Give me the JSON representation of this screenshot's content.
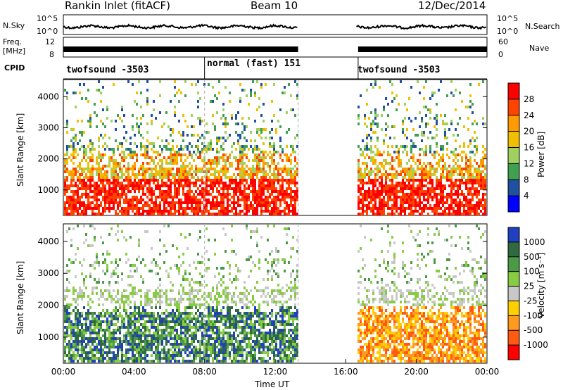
{
  "header": {
    "station": "Rankin Inlet (fitACF)",
    "beam": "Beam 10",
    "date": "12/Dec/2014"
  },
  "labels": {
    "nsky": "N.Sky",
    "freq_line1": "Freq.",
    "freq_line2": "[MHz]",
    "cpid": "CPID",
    "nsearch": "N.Search",
    "nave": "Nave",
    "nsky_ticks": [
      "10^5",
      "10^0"
    ],
    "freq_ticks": [
      "12",
      "8"
    ],
    "nave_ticks": [
      "60",
      "0"
    ],
    "nsearch_ticks": [
      "10^5",
      "10^0"
    ]
  },
  "cpid_segments": [
    {
      "name": "twofsound -3503",
      "start_h": 0.0
    },
    {
      "name": "normal (fast) 151",
      "start_h": 8.0
    },
    {
      "name": "twofsound -3503",
      "start_h": 16.7
    }
  ],
  "chart_data": [
    {
      "type": "heatmap",
      "title": "",
      "xlabel": "Time UT",
      "ylabel": "Slant Range [km]",
      "x_ticks": [
        "00:00",
        "04:00",
        "08:00",
        "12:00",
        "16:00",
        "20:00",
        "00:00"
      ],
      "xlim_hours": [
        0,
        24
      ],
      "y_ticks": [
        1000,
        2000,
        3000,
        4000
      ],
      "ylim": [
        180,
        4550
      ],
      "colorbar_label": "Power [dB]",
      "colorbar_ticks": [
        28,
        24,
        20,
        16,
        12,
        8,
        4
      ],
      "colors": [
        "#ff0000",
        "#ff4400",
        "#ff9a00",
        "#f0c000",
        "#a0d060",
        "#40a050",
        "#2050a0",
        "#0000ff"
      ],
      "data_gaps_hours": [
        [
          13.3,
          16.6
        ]
      ]
    },
    {
      "type": "heatmap",
      "title": "",
      "xlabel": "Time UT",
      "ylabel": "Slant Range [km]",
      "x_ticks": [
        "00:00",
        "04:00",
        "08:00",
        "12:00",
        "16:00",
        "20:00",
        "00:00"
      ],
      "xlim_hours": [
        0,
        24
      ],
      "y_ticks": [
        1000,
        2000,
        3000,
        4000
      ],
      "ylim": [
        180,
        4550
      ],
      "colorbar_label": "Velocity [m s⁻¹]",
      "colorbar_ticks": [
        1000,
        500,
        100,
        25,
        -25,
        -100,
        -500,
        -1000
      ],
      "colors": [
        "#2040c0",
        "#306a40",
        "#4a9a48",
        "#88cc44",
        "#c8c8c8",
        "#ffd000",
        "#ff9a20",
        "#ff5a10",
        "#ff0000"
      ],
      "data_gaps_hours": [
        [
          13.3,
          16.6
        ]
      ]
    }
  ]
}
